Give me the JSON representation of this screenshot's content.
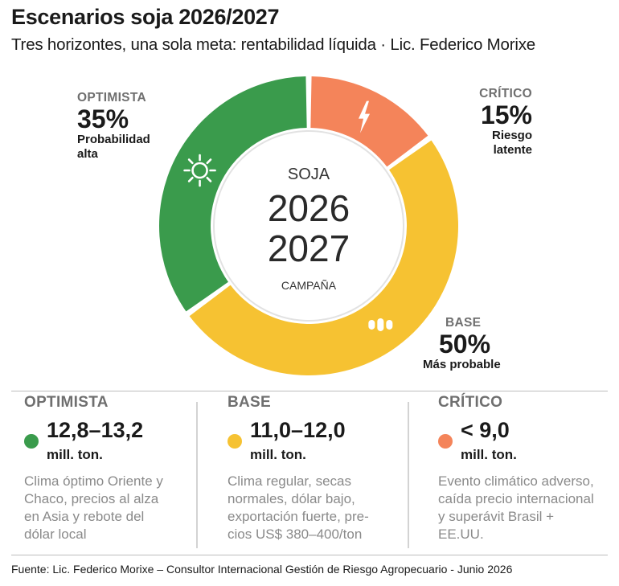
{
  "header": {
    "title": "Escenarios soja 2026/2027",
    "subtitle": "Tres horizontes, una sola meta: rentabilidad líquida · Lic. Federico Morixe"
  },
  "center": {
    "line1": "SOJA",
    "line2": "2026",
    "line3": "2027",
    "line4": "CAMPAÑA"
  },
  "chart_data": {
    "type": "pie",
    "categories": [
      "Crítico",
      "Base",
      "Optimista"
    ],
    "values": [
      15,
      50,
      35
    ],
    "colors": [
      "#f4845a",
      "#f6c232",
      "#3a9b4c"
    ],
    "icons": [
      "lightning-icon",
      "soy-bean-icon",
      "sun-icon"
    ]
  },
  "labels": {
    "optimista": {
      "name": "OPTIMISTA",
      "pct": "35%",
      "desc1": "Probabilidad",
      "desc2": "alta"
    },
    "critico": {
      "name": "CRÍTICO",
      "pct": "15%",
      "desc1": "Riesgo",
      "desc2": "latente"
    },
    "base": {
      "name": "BASE",
      "pct": "50%",
      "desc1": "Más probable"
    }
  },
  "columns": [
    {
      "name": "OPTIMISTA",
      "color": "#3a9b4c",
      "range": "12,8–13,2",
      "unit": "mill. ton.",
      "text": [
        "Clima óptimo Oriente y",
        "Chaco, precios al alza",
        "en Asia y rebote del",
        "dólar local"
      ]
    },
    {
      "name": "BASE",
      "color": "#f6c232",
      "range": "11,0–12,0",
      "unit": "mill. ton.",
      "text": [
        "Clima regular, secas",
        "normales, dólar bajo,",
        "exportación fuerte, pre-",
        "cios US$ 380–400/ton"
      ]
    },
    {
      "name": "CRÍTICO",
      "color": "#f4845a",
      "range": "< 9,0",
      "unit": "mill. ton.",
      "text": [
        "Evento climático adverso,",
        "caída precio internacional",
        "y superávit Brasil +",
        "EE.UU."
      ]
    }
  ],
  "footer": {
    "source": "Fuente: Lic. Federico Morixe – Consultor Internacional Gestión de Riesgo Agropecuario  - Junio 2026"
  }
}
